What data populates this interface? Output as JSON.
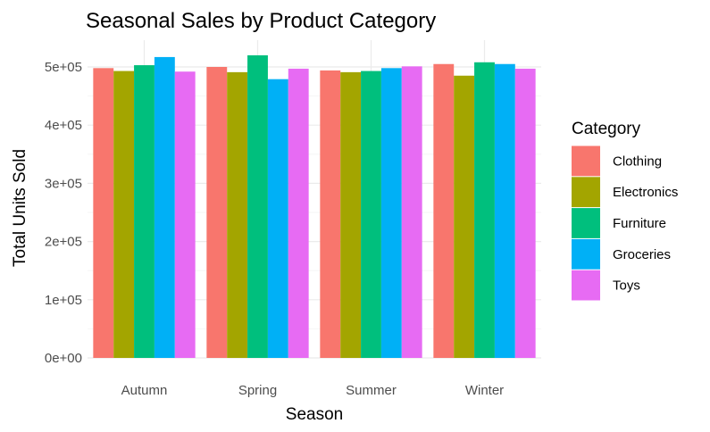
{
  "chart_data": {
    "type": "bar",
    "title": "Seasonal Sales by Product Category",
    "xlabel": "Season",
    "ylabel": "Total Units Sold",
    "categories": [
      "Autumn",
      "Spring",
      "Summer",
      "Winter"
    ],
    "ylim": [
      0,
      520000
    ],
    "yticks": [
      0,
      100000,
      200000,
      300000,
      400000,
      500000
    ],
    "ytick_labels": [
      "0e+00",
      "1e+05",
      "2e+05",
      "3e+05",
      "4e+05",
      "5e+05"
    ],
    "grid": true,
    "legend": {
      "title": "Category",
      "placement": "right"
    },
    "series": [
      {
        "name": "Clothing",
        "color": "#F8766D",
        "values": [
          498000,
          500000,
          494000,
          505000
        ]
      },
      {
        "name": "Electronics",
        "color": "#A3A500",
        "values": [
          493000,
          491000,
          491000,
          485000
        ]
      },
      {
        "name": "Furniture",
        "color": "#00BF7D",
        "values": [
          503000,
          520000,
          493000,
          508000
        ]
      },
      {
        "name": "Groceries",
        "color": "#00B0F6",
        "values": [
          517000,
          479000,
          498000,
          505000
        ]
      },
      {
        "name": "Toys",
        "color": "#E76BF3",
        "values": [
          492000,
          497000,
          501000,
          497000
        ]
      }
    ]
  }
}
